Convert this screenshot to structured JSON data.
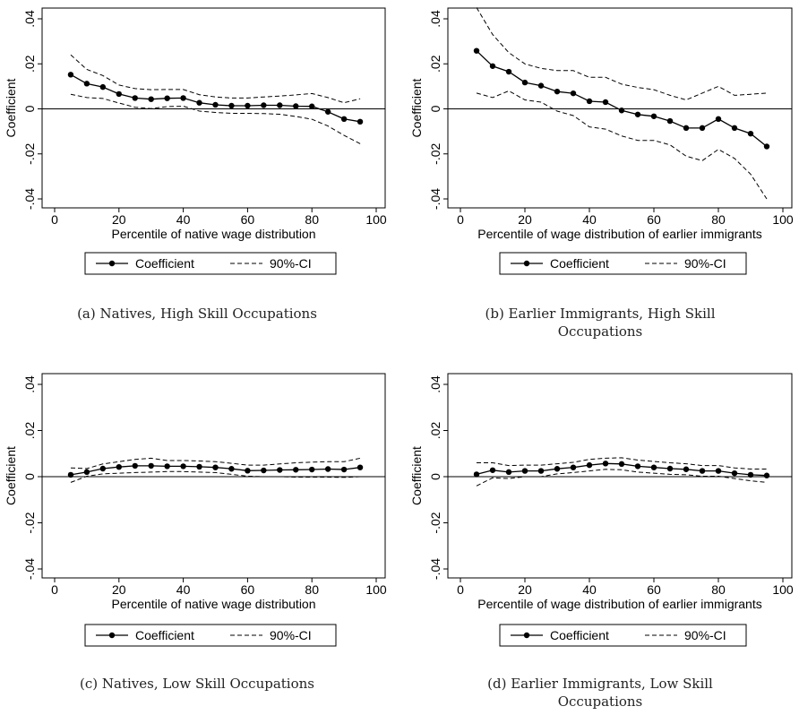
{
  "chart_data": [
    {
      "type": "line",
      "ylabel": "Coefficient",
      "xlabel": "Percentile of native wage distribution",
      "xlim": [
        0,
        100
      ],
      "ylim": [
        -0.04,
        0.04
      ],
      "xticks": [
        0,
        20,
        40,
        60,
        80,
        100
      ],
      "xtick_labels": [
        "0",
        "20",
        "40",
        "60",
        "80",
        "100"
      ],
      "yticks": [
        -0.04,
        -0.02,
        0,
        0.02,
        0.04
      ],
      "ytick_labels": [
        "-.04",
        "-.02",
        "0",
        ".02",
        ".04"
      ],
      "legend": "bottom",
      "grid": false,
      "reference_line_y": 0,
      "x": [
        5,
        10,
        15,
        20,
        25,
        30,
        35,
        40,
        45,
        50,
        55,
        60,
        65,
        70,
        75,
        80,
        85,
        90,
        95
      ],
      "series": [
        {
          "name": "Coefficient",
          "style": "solid-markers",
          "values": [
            0.0152,
            0.0112,
            0.0097,
            0.0066,
            0.0048,
            0.0043,
            0.0047,
            0.0048,
            0.0027,
            0.0018,
            0.0014,
            0.0014,
            0.0016,
            0.0016,
            0.0012,
            0.0011,
            -0.0013,
            -0.0045,
            -0.0057
          ]
        },
        {
          "name": "90%-CI",
          "style": "dashed",
          "values": [
            0.024,
            0.0175,
            0.0148,
            0.0106,
            0.009,
            0.0085,
            0.0086,
            0.0086,
            0.0063,
            0.0053,
            0.0048,
            0.0048,
            0.0053,
            0.0057,
            0.0062,
            0.0068,
            0.005,
            0.0027,
            0.0045
          ]
        },
        {
          "name": "90%-CI lower",
          "style": "dashed",
          "values": [
            0.0065,
            0.005,
            0.0046,
            0.0026,
            0.0007,
            0.0001,
            0.001,
            0.0012,
            -0.001,
            -0.0016,
            -0.002,
            -0.002,
            -0.0021,
            -0.0024,
            -0.0034,
            -0.0046,
            -0.0076,
            -0.0118,
            -0.0155
          ]
        }
      ],
      "caption": "(a)  Natives, High Skill Occupations"
    },
    {
      "type": "line",
      "ylabel": "Coefficient",
      "xlabel": "Percentile of wage distribution of earlier immigrants",
      "xlim": [
        0,
        100
      ],
      "ylim": [
        -0.04,
        0.04
      ],
      "xticks": [
        0,
        20,
        40,
        60,
        80,
        100
      ],
      "xtick_labels": [
        "0",
        "20",
        "40",
        "60",
        "80",
        "100"
      ],
      "yticks": [
        -0.04,
        -0.02,
        0,
        0.02,
        0.04
      ],
      "ytick_labels": [
        "-.04",
        "-.02",
        "0",
        ".02",
        ".04"
      ],
      "legend": "bottom",
      "grid": false,
      "reference_line_y": 0,
      "x": [
        5,
        10,
        15,
        20,
        25,
        30,
        35,
        40,
        45,
        50,
        55,
        60,
        65,
        70,
        75,
        80,
        85,
        90,
        95
      ],
      "series": [
        {
          "name": "Coefficient",
          "style": "solid-markers",
          "values": [
            0.0258,
            0.019,
            0.0165,
            0.0117,
            0.0103,
            0.0077,
            0.0069,
            0.0034,
            0.003,
            -0.0007,
            -0.0025,
            -0.0033,
            -0.0054,
            -0.0085,
            -0.0085,
            -0.0045,
            -0.0085,
            -0.011,
            -0.0167
          ]
        },
        {
          "name": "90%-CI",
          "style": "dashed",
          "values": [
            0.045,
            0.033,
            0.025,
            0.02,
            0.018,
            0.017,
            0.017,
            0.014,
            0.014,
            0.011,
            0.0095,
            0.0085,
            0.006,
            0.004,
            0.007,
            0.01,
            0.006,
            0.0065,
            0.007
          ]
        },
        {
          "name": "90%-CI lower",
          "style": "dashed",
          "values": [
            0.007,
            0.005,
            0.008,
            0.004,
            0.003,
            -0.001,
            -0.003,
            -0.008,
            -0.009,
            -0.012,
            -0.014,
            -0.014,
            -0.016,
            -0.021,
            -0.023,
            -0.018,
            -0.022,
            -0.029,
            -0.04
          ]
        }
      ],
      "caption": "(b)  Earlier Immigrants, High Skill",
      "caption_line2": "Occupations"
    },
    {
      "type": "line",
      "ylabel": "Coefficient",
      "xlabel": "Percentile of native wage distribution",
      "xlim": [
        0,
        100
      ],
      "ylim": [
        -0.04,
        0.04
      ],
      "xticks": [
        0,
        20,
        40,
        60,
        80,
        100
      ],
      "xtick_labels": [
        "0",
        "20",
        "40",
        "60",
        "80",
        "100"
      ],
      "yticks": [
        -0.04,
        -0.02,
        0,
        0.02,
        0.04
      ],
      "ytick_labels": [
        "-.04",
        "-.02",
        "0",
        ".02",
        ".04"
      ],
      "legend": "bottom",
      "grid": false,
      "reference_line_y": 0,
      "x": [
        5,
        10,
        15,
        20,
        25,
        30,
        35,
        40,
        45,
        50,
        55,
        60,
        65,
        70,
        75,
        80,
        85,
        90,
        95
      ],
      "series": [
        {
          "name": "Coefficient",
          "style": "solid-markers",
          "values": [
            0.0008,
            0.002,
            0.0035,
            0.0042,
            0.0047,
            0.0047,
            0.0045,
            0.0045,
            0.0043,
            0.004,
            0.0034,
            0.0026,
            0.0027,
            0.0029,
            0.003,
            0.0031,
            0.0033,
            0.0031,
            0.004
          ]
        },
        {
          "name": "90%-CI",
          "style": "dashed",
          "values": [
            0.0038,
            0.0035,
            0.0055,
            0.0065,
            0.0075,
            0.008,
            0.007,
            0.007,
            0.0068,
            0.0065,
            0.0058,
            0.005,
            0.005,
            0.0055,
            0.006,
            0.0063,
            0.0065,
            0.0065,
            0.008
          ]
        },
        {
          "name": "90%-CI lower",
          "style": "dashed",
          "values": [
            -0.0025,
            0.0002,
            0.0012,
            0.0015,
            0.0018,
            0.002,
            0.0022,
            0.0022,
            0.002,
            0.0018,
            0.001,
            0.0002,
            0.0,
            0.0,
            -0.0002,
            -0.0002,
            -0.0002,
            -0.0003,
            0.0
          ]
        }
      ],
      "caption": "(c)  Natives, Low Skill Occupations"
    },
    {
      "type": "line",
      "ylabel": "Coefficient",
      "xlabel": "Percentile of wage distribution of earlier immigrants",
      "xlim": [
        0,
        100
      ],
      "ylim": [
        -0.04,
        0.04
      ],
      "xticks": [
        0,
        20,
        40,
        60,
        80,
        100
      ],
      "xtick_labels": [
        "0",
        "20",
        "40",
        "60",
        "80",
        "100"
      ],
      "yticks": [
        -0.04,
        -0.02,
        0,
        0.02,
        0.04
      ],
      "ytick_labels": [
        "-.04",
        "-.02",
        "0",
        ".02",
        ".04"
      ],
      "legend": "bottom",
      "grid": false,
      "reference_line_y": 0,
      "x": [
        5,
        10,
        15,
        20,
        25,
        30,
        35,
        40,
        45,
        50,
        55,
        60,
        65,
        70,
        75,
        80,
        85,
        90,
        95
      ],
      "series": [
        {
          "name": "Coefficient",
          "style": "solid-markers",
          "values": [
            0.001,
            0.0028,
            0.002,
            0.0025,
            0.0025,
            0.0034,
            0.004,
            0.005,
            0.0057,
            0.0055,
            0.0045,
            0.004,
            0.0035,
            0.0032,
            0.0025,
            0.0025,
            0.0015,
            0.0008,
            0.0005
          ]
        },
        {
          "name": "90%-CI",
          "style": "dashed",
          "values": [
            0.006,
            0.006,
            0.0048,
            0.005,
            0.005,
            0.0056,
            0.0062,
            0.0075,
            0.008,
            0.0082,
            0.0072,
            0.0066,
            0.006,
            0.0056,
            0.0048,
            0.0048,
            0.0038,
            0.0033,
            0.0033
          ]
        },
        {
          "name": "90%-CI lower",
          "style": "dashed",
          "values": [
            -0.004,
            -0.0005,
            -0.0008,
            0.0,
            0.0,
            0.0012,
            0.0018,
            0.0025,
            0.0032,
            0.003,
            0.002,
            0.0015,
            0.001,
            0.0008,
            0.0002,
            0.0002,
            -0.0008,
            -0.0018,
            -0.0025
          ]
        }
      ],
      "caption": "(d)  Earlier Immigrants, Low Skill",
      "caption_line2": "Occupations"
    }
  ],
  "colors": {
    "line": "#000000",
    "axis": "#000000",
    "background": "#ffffff"
  }
}
